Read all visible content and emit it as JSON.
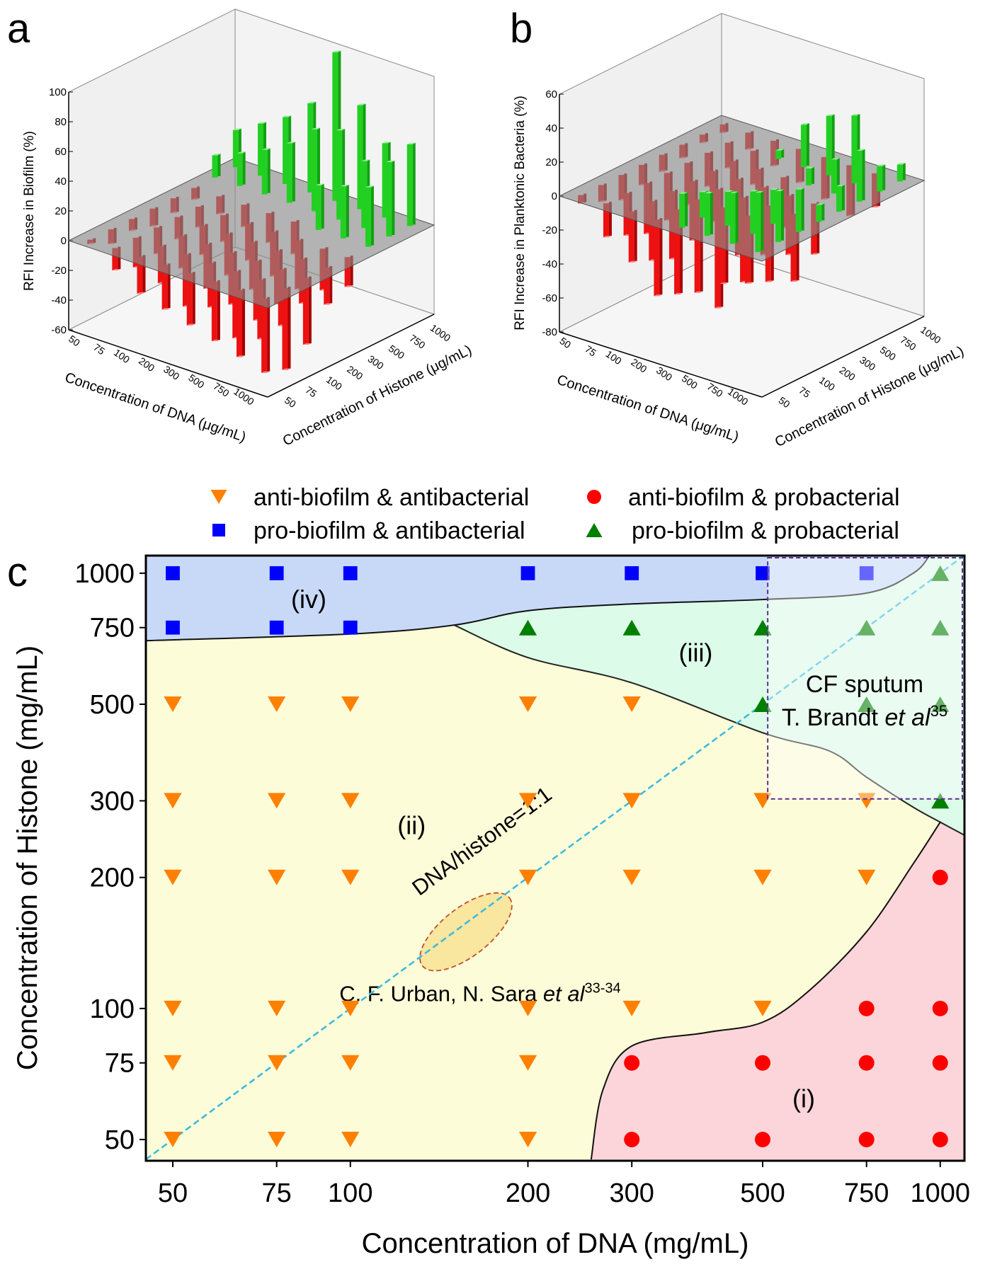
{
  "figure": {
    "panel_labels": {
      "a": "a",
      "b": "b",
      "c": "c"
    }
  },
  "chart_data": [
    {
      "type": "bar3d",
      "panel": "a",
      "zlabel": "RFI Increase in Biofilm (%)",
      "xlabel": "Concentration of DNA (μg/mL)",
      "ylabel": "Concentration of Histone (μg/mL)",
      "x_categories": [
        "50",
        "75",
        "100",
        "200",
        "300",
        "500",
        "750",
        "1000"
      ],
      "y_categories": [
        "50",
        "75",
        "100",
        "200",
        "300",
        "500",
        "750",
        "1000"
      ],
      "z_ticks": [
        "-60",
        "-40",
        "-20",
        "0",
        "20",
        "40",
        "60",
        "80",
        "100"
      ],
      "zlim": [
        -60,
        100
      ],
      "values_by_histone_row": [
        [
          -3,
          -15,
          -25,
          -30,
          -35,
          -40,
          -45,
          -50
        ],
        [
          -10,
          -20,
          -25,
          -35,
          -30,
          -45,
          -40,
          -55
        ],
        [
          -8,
          -18,
          -22,
          -30,
          -35,
          -40,
          -38,
          -45
        ],
        [
          -12,
          -15,
          -20,
          -28,
          -32,
          -36,
          -30,
          -25
        ],
        [
          -10,
          -14,
          -18,
          -25,
          -30,
          -33,
          -28,
          -20
        ],
        [
          -8,
          -12,
          -15,
          -20,
          -22,
          30,
          35,
          40
        ],
        [
          15,
          22,
          30,
          40,
          55,
          60,
          45,
          50
        ],
        [
          25,
          35,
          45,
          60,
          100,
          70,
          50,
          55
        ]
      ],
      "colors": {
        "positive": "#22d022",
        "negative": "#ee1111",
        "plane": "#8a8a8a"
      }
    },
    {
      "type": "bar3d",
      "panel": "b",
      "zlabel": "RFI Increase in Planktonic Bacteria (%)",
      "xlabel": "Concentration of DNA (μg/mL)",
      "ylabel": "Concentration of Histone (μg/mL)",
      "x_categories": [
        "50",
        "75",
        "100",
        "200",
        "300",
        "500",
        "750",
        "1000"
      ],
      "y_categories": [
        "50",
        "75",
        "100",
        "200",
        "300",
        "500",
        "750",
        "1000"
      ],
      "z_ticks": [
        "-80",
        "-60",
        "-40",
        "-20",
        "0",
        "20",
        "40",
        "60"
      ],
      "zlim": [
        -80,
        60
      ],
      "values_by_histone_row": [
        [
          -5,
          -20,
          -30,
          -45,
          20,
          25,
          30,
          35
        ],
        [
          -10,
          -25,
          -35,
          -50,
          15,
          20,
          25,
          30
        ],
        [
          -15,
          -30,
          -40,
          -55,
          -45,
          -40,
          20,
          25
        ],
        [
          -12,
          -28,
          -35,
          -70,
          -50,
          -45,
          -40,
          10
        ],
        [
          -10,
          -25,
          -30,
          -45,
          -40,
          -35,
          -30,
          15
        ],
        [
          -8,
          -20,
          -25,
          -35,
          -30,
          10,
          20,
          30
        ],
        [
          -5,
          -15,
          -20,
          5,
          25,
          35,
          40,
          15
        ],
        [
          -5,
          -10,
          -15,
          -20,
          -25,
          -30,
          -20,
          10
        ]
      ],
      "colors": {
        "positive": "#22d022",
        "negative": "#ee1111",
        "plane": "#8a8a8a"
      }
    },
    {
      "type": "scatter",
      "panel": "c",
      "xlabel": "Concentration of DNA (mg/mL)",
      "ylabel": "Concentration of Histone (mg/mL)",
      "scale": "log",
      "xlim": [
        45,
        1100
      ],
      "ylim": [
        45,
        1100
      ],
      "x_ticks": [
        50,
        75,
        100,
        200,
        300,
        500,
        750,
        1000
      ],
      "y_ticks": [
        50,
        75,
        100,
        200,
        300,
        500,
        750,
        1000
      ],
      "legend_position": "top",
      "series": [
        {
          "name": "anti-biofilm & antibacterial",
          "marker": "triangle-down",
          "color": "#ff8000",
          "points": [
            [
              50,
              500
            ],
            [
              75,
              500
            ],
            [
              100,
              500
            ],
            [
              200,
              500
            ],
            [
              300,
              500
            ],
            [
              50,
              300
            ],
            [
              75,
              300
            ],
            [
              100,
              300
            ],
            [
              200,
              300
            ],
            [
              300,
              300
            ],
            [
              500,
              300
            ],
            [
              750,
              300
            ],
            [
              50,
              200
            ],
            [
              75,
              200
            ],
            [
              100,
              200
            ],
            [
              200,
              200
            ],
            [
              300,
              200
            ],
            [
              500,
              200
            ],
            [
              750,
              200
            ],
            [
              50,
              100
            ],
            [
              75,
              100
            ],
            [
              100,
              100
            ],
            [
              200,
              100
            ],
            [
              300,
              100
            ],
            [
              500,
              100
            ],
            [
              50,
              75
            ],
            [
              75,
              75
            ],
            [
              100,
              75
            ],
            [
              200,
              75
            ],
            [
              50,
              50
            ],
            [
              75,
              50
            ],
            [
              100,
              50
            ],
            [
              200,
              50
            ]
          ]
        },
        {
          "name": "anti-biofilm & probacterial",
          "marker": "circle",
          "color": "#ff0000",
          "points": [
            [
              1000,
              200
            ],
            [
              750,
              100
            ],
            [
              1000,
              100
            ],
            [
              300,
              75
            ],
            [
              500,
              75
            ],
            [
              750,
              75
            ],
            [
              1000,
              75
            ],
            [
              300,
              50
            ],
            [
              500,
              50
            ],
            [
              750,
              50
            ],
            [
              1000,
              50
            ]
          ]
        },
        {
          "name": "pro-biofilm & antibacterial",
          "marker": "square",
          "color": "#0000ff",
          "points": [
            [
              50,
              1000
            ],
            [
              75,
              1000
            ],
            [
              100,
              1000
            ],
            [
              200,
              1000
            ],
            [
              300,
              1000
            ],
            [
              500,
              1000
            ],
            [
              750,
              1000
            ],
            [
              50,
              750
            ],
            [
              75,
              750
            ],
            [
              100,
              750
            ]
          ]
        },
        {
          "name": "pro-biofilm & probacterial",
          "marker": "triangle-up",
          "color": "#007f00",
          "points": [
            [
              1000,
              1000
            ],
            [
              200,
              750
            ],
            [
              300,
              750
            ],
            [
              500,
              750
            ],
            [
              750,
              750
            ],
            [
              1000,
              750
            ],
            [
              500,
              500
            ],
            [
              750,
              500
            ],
            [
              1000,
              500
            ],
            [
              1000,
              300
            ]
          ]
        }
      ],
      "regions": [
        {
          "label": "(iv)",
          "at": [
            85,
            870
          ],
          "color": "#c8d9f8",
          "boundary": [
            [
              45,
              700
            ],
            [
              100,
              725
            ],
            [
              150,
              760
            ],
            [
              200,
              820
            ],
            [
              300,
              850
            ],
            [
              500,
              870
            ],
            [
              750,
              900
            ],
            [
              900,
              1000
            ],
            [
              960,
              1100
            ]
          ]
        },
        {
          "label": "(iii)",
          "at": [
            385,
            656
          ],
          "color": "#dcfbe8",
          "boundary": [
            [
              150,
              760
            ],
            [
              200,
              640
            ],
            [
              300,
              560
            ],
            [
              500,
              430
            ],
            [
              650,
              390
            ],
            [
              750,
              340
            ],
            [
              900,
              290
            ],
            [
              1000,
              268
            ],
            [
              1100,
              250
            ]
          ]
        },
        {
          "label": "(ii)",
          "at": [
            127,
            263
          ],
          "color": "#fcfcd8"
        },
        {
          "label": "(i)",
          "at": [
            587,
            62
          ],
          "color": "#fbd5d9",
          "boundary": [
            [
              256,
              45
            ],
            [
              268,
              65
            ],
            [
              300,
              82
            ],
            [
              400,
              88
            ],
            [
              500,
              93
            ],
            [
              600,
              110
            ],
            [
              750,
              150
            ],
            [
              900,
              215
            ],
            [
              1000,
              268
            ]
          ]
        }
      ],
      "reference_line": {
        "label": "DNA/histone=1:1",
        "ratio": 1,
        "color": "#3ab8e0"
      },
      "annotations": [
        {
          "kind": "box",
          "label_lines": [
            "CF sputum",
            "T. Brandt "
          ],
          "italic": "et al",
          "sup": "35",
          "x_range": [
            510,
            1100
          ],
          "y_range": [
            303,
            1100
          ],
          "color": "#5a2d91"
        },
        {
          "kind": "ellipse",
          "label": "C. F. Urban, N. Sara ",
          "italic": "et al",
          "sup": "33-34",
          "center": [
            157,
            150
          ],
          "color": "#c0502a",
          "fill": "#f8df8c"
        }
      ]
    }
  ]
}
